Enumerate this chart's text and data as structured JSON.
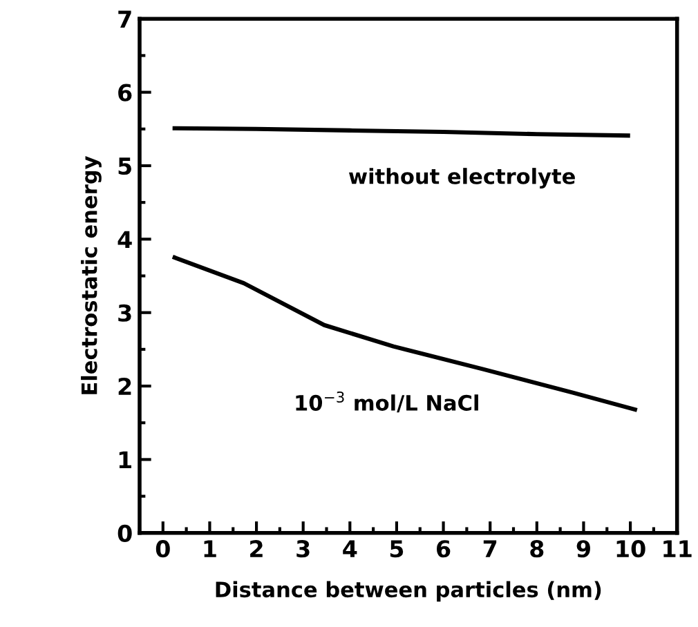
{
  "chart_data": {
    "type": "line",
    "xlabel": "Distance between particles (nm)",
    "ylabel": "Electrostatic energy",
    "series": [
      {
        "color": "#000000",
        "x": [
          0.25,
          2,
          4,
          6,
          8,
          9.95
        ],
        "values": [
          5.51,
          5.5,
          5.48,
          5.46,
          5.43,
          5.41
        ]
      },
      {
        "color": "#000000",
        "x": [
          0.25,
          1.73,
          3.45,
          4.93,
          6.85,
          8.77,
          10.1
        ],
        "values": [
          3.75,
          3.4,
          2.83,
          2.54,
          2.23,
          1.91,
          1.68
        ]
      }
    ],
    "annotations": [
      "without electrolyte",
      "10$^{−3}$ mol/L NaCl"
    ],
    "xlim": [
      -0.5,
      11
    ],
    "xticks": [
      0,
      1,
      2,
      3,
      4,
      5,
      6,
      7,
      8,
      9,
      10,
      11
    ],
    "ylim": [
      0,
      7
    ],
    "yticks": [
      0,
      1,
      2,
      3,
      4,
      5,
      6,
      7
    ],
    "grid": false,
    "legend": false,
    "marker": "none",
    "line_style": "solid"
  }
}
